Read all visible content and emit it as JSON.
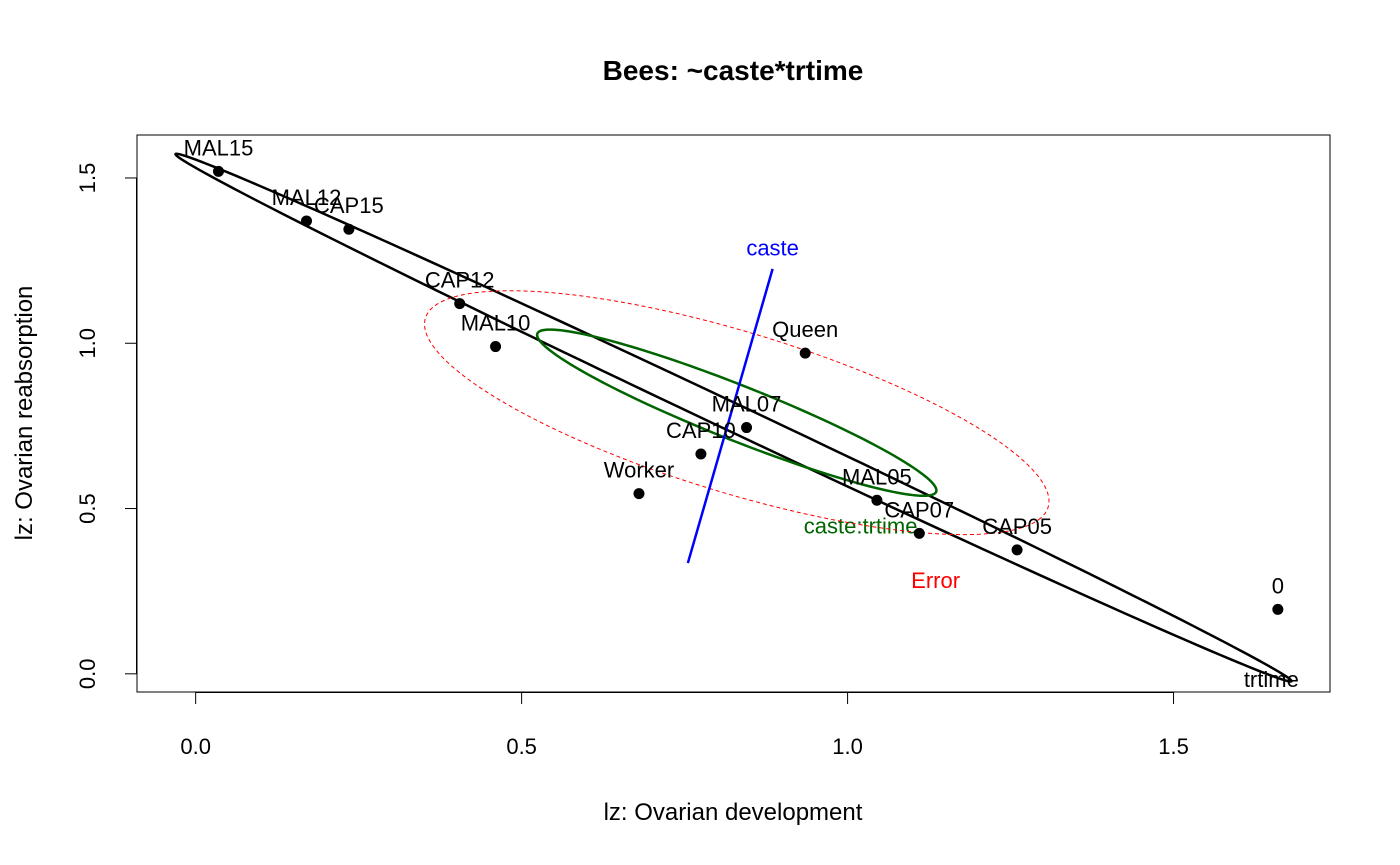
{
  "chart_data": {
    "type": "scatter",
    "title": "Bees: ~caste*trtime",
    "xlabel": "lz: Ovarian development",
    "ylabel": "lz: Ovarian reabsorption",
    "xlim": [
      -0.09,
      1.74
    ],
    "ylim": [
      -0.055,
      1.63
    ],
    "xticks": [
      0.0,
      0.5,
      1.0,
      1.5
    ],
    "xtick_labels": [
      "0.0",
      "0.5",
      "1.0",
      "1.5"
    ],
    "yticks": [
      0.0,
      0.5,
      1.0,
      1.5
    ],
    "ytick_labels": [
      "0.0",
      "0.5",
      "1.0",
      "1.5"
    ],
    "grid": false,
    "points": [
      {
        "label": "MAL15",
        "x": 0.035,
        "y": 1.52,
        "pos": "above"
      },
      {
        "label": "MAL12",
        "x": 0.17,
        "y": 1.37,
        "pos": "above"
      },
      {
        "label": "CAP15",
        "x": 0.235,
        "y": 1.345,
        "pos": "above"
      },
      {
        "label": "CAP12",
        "x": 0.405,
        "y": 1.12,
        "pos": "above"
      },
      {
        "label": "MAL10",
        "x": 0.46,
        "y": 0.99,
        "pos": "above"
      },
      {
        "label": "Queen",
        "x": 0.935,
        "y": 0.97,
        "pos": "above"
      },
      {
        "label": "MAL07",
        "x": 0.845,
        "y": 0.745,
        "pos": "above"
      },
      {
        "label": "CAP10",
        "x": 0.775,
        "y": 0.665,
        "pos": "above"
      },
      {
        "label": "Worker",
        "x": 0.68,
        "y": 0.545,
        "pos": "above"
      },
      {
        "label": "MAL05",
        "x": 1.045,
        "y": 0.525,
        "pos": "above"
      },
      {
        "label": "CAP07",
        "x": 1.11,
        "y": 0.425,
        "pos": "above"
      },
      {
        "label": "CAP05",
        "x": 1.26,
        "y": 0.375,
        "pos": "above"
      },
      {
        "label": "0",
        "x": 1.66,
        "y": 0.195,
        "pos": "above"
      }
    ],
    "ellipses": [
      {
        "name": "trtime",
        "color": "#000000",
        "center": [
          0.825,
          0.775
        ],
        "semi_major": 1.17,
        "semi_minor": 0.034,
        "angle_deg": -43.0,
        "dashed": false,
        "label_pos": [
          1.65,
          -0.04
        ]
      },
      {
        "name": "caste:trtime",
        "color": "#006400",
        "center": [
          0.83,
          0.79
        ],
        "semi_major": 0.39,
        "semi_minor": 0.07,
        "angle_deg": -39.0,
        "dashed": false,
        "label_pos": [
          1.02,
          0.425
        ]
      },
      {
        "name": "Error",
        "color": "#ff0000",
        "center": [
          0.83,
          0.79
        ],
        "semi_major": 0.565,
        "semi_minor": 0.215,
        "angle_deg": -35.0,
        "dashed": true,
        "label_pos": [
          1.135,
          0.26
        ]
      }
    ],
    "lines": [
      {
        "name": "caste",
        "color": "#0000ff",
        "x": [
          0.755,
          0.885
        ],
        "y": [
          0.335,
          1.225
        ],
        "label_pos": [
          0.885,
          1.265
        ]
      }
    ]
  }
}
